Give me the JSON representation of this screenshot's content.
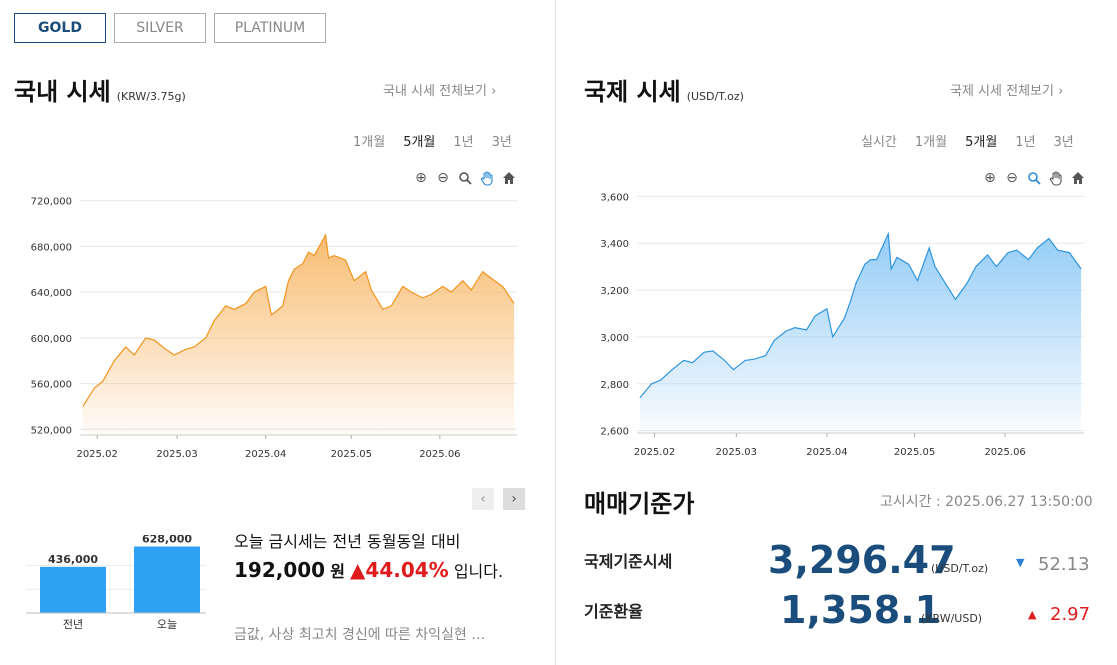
{
  "tabs": [
    {
      "label": "GOLD",
      "active": true
    },
    {
      "label": "SILVER",
      "active": false
    },
    {
      "label": "PLATINUM",
      "active": false
    }
  ],
  "domestic": {
    "title": "국내 시세",
    "unit": "(KRW/3.75g)",
    "link": "국내 시세 전체보기",
    "periods": [
      "1개월",
      "5개월",
      "1년",
      "3년"
    ],
    "active_period": "5개월"
  },
  "international": {
    "title": "국제 시세",
    "unit": "(USD/T.oz)",
    "link": "국제 시세 전체보기",
    "periods": [
      "실시간",
      "1개월",
      "5개월",
      "1년",
      "3년"
    ],
    "active_period": "5개월"
  },
  "tool_icons": [
    "zoom-in-icon",
    "zoom-out-icon",
    "magnifier-icon",
    "pan-hand-icon",
    "home-icon"
  ],
  "colors": {
    "gold_line": "#f0941e",
    "gold_fill": "#f8b96b",
    "intl_line": "#2f95e0",
    "intl_fill": "#8fcaf6",
    "bar": "#2ea1f2",
    "up": "#e01b1b",
    "down": "#2a7fd4",
    "accent": "#1a4d7c"
  },
  "chart_data": [
    {
      "type": "area",
      "series": [
        {
          "x": [
            "2025-01-27",
            "2025-01-31",
            "2025-02-03",
            "2025-02-07",
            "2025-02-11",
            "2025-02-14",
            "2025-02-18",
            "2025-02-21",
            "2025-02-25",
            "2025-02-28",
            "2025-03-04",
            "2025-03-07",
            "2025-03-11",
            "2025-03-14",
            "2025-03-18",
            "2025-03-21",
            "2025-03-25",
            "2025-03-28",
            "2025-04-01",
            "2025-04-03",
            "2025-04-07",
            "2025-04-09",
            "2025-04-11",
            "2025-04-14",
            "2025-04-16",
            "2025-04-18",
            "2025-04-22",
            "2025-04-23",
            "2025-04-25",
            "2025-04-29",
            "2025-05-02",
            "2025-05-06",
            "2025-05-08",
            "2025-05-12",
            "2025-05-15",
            "2025-05-19",
            "2025-05-22",
            "2025-05-26",
            "2025-05-29",
            "2025-06-02",
            "2025-06-05",
            "2025-06-09",
            "2025-06-12",
            "2025-06-16",
            "2025-06-19",
            "2025-06-23",
            "2025-06-27"
          ],
          "y": [
            540000,
            556000,
            562000,
            580000,
            592000,
            585000,
            600000,
            598000,
            590000,
            585000,
            590000,
            592000,
            600000,
            615000,
            628000,
            625000,
            630000,
            640000,
            645000,
            620000,
            628000,
            650000,
            660000,
            665000,
            675000,
            672000,
            690000,
            670000,
            672000,
            668000,
            650000,
            658000,
            642000,
            625000,
            628000,
            645000,
            640000,
            635000,
            638000,
            645000,
            640000,
            650000,
            642000,
            658000,
            652000,
            645000,
            630000
          ]
        }
      ],
      "ylim": [
        515000,
        725000
      ],
      "yticks": [
        "520,000",
        "560,000",
        "600,000",
        "640,000",
        "680,000",
        "720,000"
      ],
      "xticks": [
        "2025.02",
        "2025.03",
        "2025.04",
        "2025.05",
        "2025.06"
      ]
    },
    {
      "type": "area",
      "series": [
        {
          "x": [
            "2025-01-27",
            "2025-01-31",
            "2025-02-03",
            "2025-02-07",
            "2025-02-11",
            "2025-02-14",
            "2025-02-18",
            "2025-02-21",
            "2025-02-25",
            "2025-02-28",
            "2025-03-04",
            "2025-03-07",
            "2025-03-11",
            "2025-03-14",
            "2025-03-18",
            "2025-03-21",
            "2025-03-25",
            "2025-03-28",
            "2025-04-01",
            "2025-04-03",
            "2025-04-07",
            "2025-04-09",
            "2025-04-11",
            "2025-04-14",
            "2025-04-16",
            "2025-04-18",
            "2025-04-22",
            "2025-04-23",
            "2025-04-25",
            "2025-04-29",
            "2025-05-02",
            "2025-05-06",
            "2025-05-08",
            "2025-05-12",
            "2025-05-15",
            "2025-05-19",
            "2025-05-22",
            "2025-05-26",
            "2025-05-29",
            "2025-06-02",
            "2025-06-05",
            "2025-06-09",
            "2025-06-12",
            "2025-06-16",
            "2025-06-19",
            "2025-06-23",
            "2025-06-27"
          ],
          "y": [
            2740,
            2800,
            2815,
            2860,
            2900,
            2890,
            2935,
            2940,
            2900,
            2860,
            2900,
            2905,
            2920,
            2985,
            3025,
            3040,
            3030,
            3090,
            3120,
            3000,
            3080,
            3150,
            3230,
            3310,
            3330,
            3330,
            3440,
            3290,
            3340,
            3310,
            3240,
            3380,
            3300,
            3220,
            3160,
            3230,
            3300,
            3350,
            3300,
            3360,
            3370,
            3330,
            3380,
            3420,
            3370,
            3360,
            3290
          ]
        }
      ],
      "ylim": [
        2590,
        3610
      ],
      "yticks": [
        "2,600",
        "2,800",
        "3,000",
        "3,200",
        "3,400",
        "3,600"
      ],
      "xticks": [
        "2025.02",
        "2025.03",
        "2025.04",
        "2025.05",
        "2025.06"
      ]
    },
    {
      "type": "bar",
      "categories": [
        "전년",
        "오늘"
      ],
      "values": [
        436000,
        628000
      ],
      "value_labels": [
        "436,000",
        "628,000"
      ],
      "ylim": [
        0,
        680000
      ]
    }
  ],
  "compare": {
    "line1": "오늘 금시세는 전년 동월동일 대비",
    "amount": "192,000",
    "amount_unit": "원",
    "up_arrow": "▲",
    "percent": "44.04%",
    "suffix": "입니다.",
    "news": "금값, 사상 최고치 경신에 따른 차익실현 …",
    "prev_label": "‹",
    "next_label": "›"
  },
  "base_price": {
    "title": "매매기준가",
    "time_label": "고시시간 : 2025.06.27 13:50:00",
    "items": [
      {
        "label": "국제기준시세",
        "value": "3,296.47",
        "unit": "(USD/T.oz)",
        "arrow": "▼",
        "change": "52.13",
        "direction": "down"
      },
      {
        "label": "기준환율",
        "value": "1,358.1",
        "unit": "(KRW/USD)",
        "arrow": "▲",
        "change": "2.97",
        "direction": "up"
      }
    ]
  }
}
